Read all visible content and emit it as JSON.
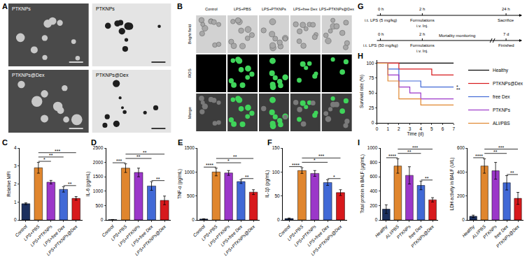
{
  "figure": {
    "panel_a": {
      "letter": "A",
      "tiles": [
        {
          "label": "PTKNPs"
        },
        {
          "label": "PTKNPs"
        },
        {
          "label": "PTKNPs@Dex"
        },
        {
          "label": "PTKNPs@Dex"
        }
      ]
    },
    "panel_b": {
      "letter": "B",
      "columns": [
        "Control",
        "LPS+PBS",
        "LPS+PTKNPs",
        "LPS+free Dex",
        "LPS+PTKNPs@Dex"
      ],
      "rows": [
        "Bright field",
        "ROS",
        "Merge"
      ]
    },
    "panel_g": {
      "letter": "G",
      "rows": [
        {
          "ticks": [
            "0 h",
            "2 h",
            "24 h"
          ],
          "events": [
            [
              "i.t. LPS (5 mg/kg)"
            ],
            [
              "Formulations",
              "i.v. Inj."
            ],
            [
              "Sacrifice"
            ]
          ]
        },
        {
          "ticks": [
            "0 h",
            "2 h",
            "7 d"
          ],
          "events": [
            [
              "i.t. LPS (50 mg/kg)"
            ],
            [
              "Formulations",
              "i.v. Inj."
            ],
            [
              "Finished"
            ]
          ],
          "span_label": "Mortality monitoring"
        }
      ]
    }
  },
  "chart_data": [
    {
      "panel": "C",
      "type": "bar",
      "y_label": "Relative MFI",
      "categories": [
        "Control",
        "LPS+PBS",
        "LPS+PTKNPs",
        "LPS+free Dex",
        "LPS+PTKNPs@Dex"
      ],
      "values": [
        0.9,
        2.9,
        2.1,
        1.7,
        1.2
      ],
      "errors": [
        0.05,
        0.3,
        0.1,
        0.15,
        0.1
      ],
      "colors": [
        "#1b2f5e",
        "#e0862e",
        "#9b37c9",
        "#4169d6",
        "#d7191c"
      ],
      "ylim": [
        0,
        4
      ],
      "yticks": [
        0,
        1,
        2,
        3,
        4
      ],
      "grid": false,
      "significance": [
        {
          "from": 1,
          "to": 2,
          "label": "*"
        },
        {
          "from": 3,
          "to": 4,
          "label": "**"
        },
        {
          "from": 1,
          "to": 3,
          "label": "**"
        },
        {
          "from": 1,
          "to": 4,
          "label": "***"
        }
      ]
    },
    {
      "panel": "D",
      "type": "bar",
      "y_label": "IL-6 (pg/mL)",
      "categories": [
        "Control",
        "LPS+PBS",
        "LPS+PTKNPs",
        "LPS+free Dex",
        "LPS+PTKNPs@Dex"
      ],
      "values": [
        10,
        1800,
        1650,
        1180,
        680
      ],
      "errors": [
        5,
        150,
        150,
        150,
        150
      ],
      "colors": [
        "#1b2f5e",
        "#e0862e",
        "#9b37c9",
        "#4169d6",
        "#d7191c"
      ],
      "ylim": [
        0,
        2500
      ],
      "yticks": [
        0,
        500,
        1000,
        1500,
        2000,
        2500
      ],
      "grid": false,
      "significance": [
        {
          "from": 0,
          "to": 1,
          "label": "***"
        },
        {
          "from": 3,
          "to": 4,
          "label": "**"
        },
        {
          "from": 1,
          "to": 3,
          "label": "**"
        },
        {
          "from": 1,
          "to": 4,
          "label": "**"
        }
      ]
    },
    {
      "panel": "E",
      "type": "bar",
      "y_label": "TNF-α (pg/mL)",
      "categories": [
        "Control",
        "LPS+PBS",
        "LPS+PTKNPs",
        "LPS+free Dex",
        "LPS+PTKNPs@Dex"
      ],
      "values": [
        20,
        1000,
        980,
        800,
        580
      ],
      "errors": [
        5,
        80,
        50,
        40,
        50
      ],
      "colors": [
        "#1b2f5e",
        "#e0862e",
        "#9b37c9",
        "#4169d6",
        "#d7191c"
      ],
      "ylim": [
        0,
        1500
      ],
      "yticks": [
        0,
        500,
        1000,
        1500
      ],
      "grid": false,
      "significance": [
        {
          "from": 0,
          "to": 1,
          "label": "****"
        },
        {
          "from": 3,
          "to": 4,
          "label": "**"
        },
        {
          "from": 1,
          "to": 3,
          "label": "*"
        },
        {
          "from": 1,
          "to": 4,
          "label": "**"
        }
      ]
    },
    {
      "panel": "F",
      "type": "bar",
      "y_label": "IL-1β (pg/mL)",
      "categories": [
        "Control",
        "LPS+PBS",
        "LPS+PTKNPs",
        "LPS+free Dex",
        "LPS+PTKNPs@Dex"
      ],
      "values": [
        3,
        103,
        97,
        78,
        57
      ],
      "errors": [
        1,
        6,
        6,
        6,
        6
      ],
      "colors": [
        "#1b2f5e",
        "#e0862e",
        "#9b37c9",
        "#4169d6",
        "#d7191c"
      ],
      "ylim": [
        0,
        150
      ],
      "yticks": [
        0,
        50,
        100,
        150
      ],
      "grid": false,
      "significance": [
        {
          "from": 0,
          "to": 1,
          "label": "****"
        },
        {
          "from": 3,
          "to": 4,
          "label": "*"
        },
        {
          "from": 1,
          "to": 3,
          "label": "*"
        },
        {
          "from": 1,
          "to": 4,
          "label": "***"
        }
      ]
    },
    {
      "panel": "H",
      "type": "line",
      "line_style": "step",
      "x_label": "Time (d)",
      "y_label": "Survival rate (%)",
      "x": [
        0,
        1,
        2,
        3,
        4,
        5,
        6,
        7
      ],
      "series": [
        {
          "name": "Healthy",
          "color": "#000000",
          "values": [
            100,
            100,
            100,
            100,
            100,
            100,
            100,
            100
          ]
        },
        {
          "name": "PTKNPs@Dex",
          "color": "#d7191c",
          "values": [
            100,
            100,
            90,
            90,
            90,
            80,
            80,
            80
          ]
        },
        {
          "name": "free Dex",
          "color": "#4169d6",
          "values": [
            100,
            90,
            70,
            70,
            60,
            60,
            60,
            60
          ]
        },
        {
          "name": "PTKNPs",
          "color": "#9b37c9",
          "values": [
            100,
            80,
            60,
            50,
            40,
            40,
            40,
            40
          ]
        },
        {
          "name": "ALI/PBS",
          "color": "#e0862e",
          "values": [
            100,
            70,
            40,
            40,
            30,
            30,
            30,
            30
          ]
        }
      ],
      "xlim": [
        0,
        7
      ],
      "xticks": [
        0,
        1,
        2,
        3,
        4,
        5,
        6,
        7
      ],
      "ylim": [
        0,
        105
      ],
      "yticks": [
        0,
        25,
        50,
        75,
        100
      ],
      "grid": false,
      "legend": "right",
      "significance": [
        {
          "from": "PTKNPs@Dex",
          "to": "ALI/PBS",
          "label": "**"
        },
        {
          "from": "PTKNPs@Dex",
          "to": "PTKNPs",
          "label": "*"
        }
      ]
    },
    {
      "panel": "I",
      "type": "bar",
      "y_label": "Total protein in BALF (μg/mL)",
      "categories": [
        "Healthy",
        "ALI/PBS",
        "PTKNPs",
        "free Dex",
        "PTKNPs@Dex"
      ],
      "values": [
        150,
        750,
        620,
        480,
        280
      ],
      "errors": [
        60,
        100,
        120,
        60,
        30
      ],
      "colors": [
        "#1b2f5e",
        "#e0862e",
        "#9b37c9",
        "#4169d6",
        "#d7191c"
      ],
      "ylim": [
        0,
        1000
      ],
      "yticks": [
        0,
        200,
        400,
        600,
        800,
        1000
      ],
      "grid": false,
      "significance": [
        {
          "from": 0,
          "to": 1,
          "label": "****"
        },
        {
          "from": 3,
          "to": 4,
          "label": "**"
        },
        {
          "from": 1,
          "to": 3,
          "label": "**"
        },
        {
          "from": 1,
          "to": 4,
          "label": "***"
        }
      ]
    },
    {
      "type": "bar",
      "y_label": "LDH activity in BALF (U/L)",
      "categories": [
        "Healthy",
        "ALI/PBS",
        "PTKNPs",
        "free Dex",
        "PTKNPs@Dex"
      ],
      "values": [
        30,
        450,
        410,
        310,
        180
      ],
      "errors": [
        10,
        60,
        70,
        60,
        50
      ],
      "colors": [
        "#1b2f5e",
        "#e0862e",
        "#9b37c9",
        "#4169d6",
        "#d7191c"
      ],
      "ylim": [
        0,
        600
      ],
      "yticks": [
        0,
        200,
        400,
        600
      ],
      "grid": false,
      "significance": [
        {
          "from": 0,
          "to": 1,
          "label": "****"
        },
        {
          "from": 3,
          "to": 4,
          "label": "**"
        },
        {
          "from": 1,
          "to": 3,
          "label": "**"
        },
        {
          "from": 1,
          "to": 4,
          "label": "***"
        }
      ]
    }
  ]
}
